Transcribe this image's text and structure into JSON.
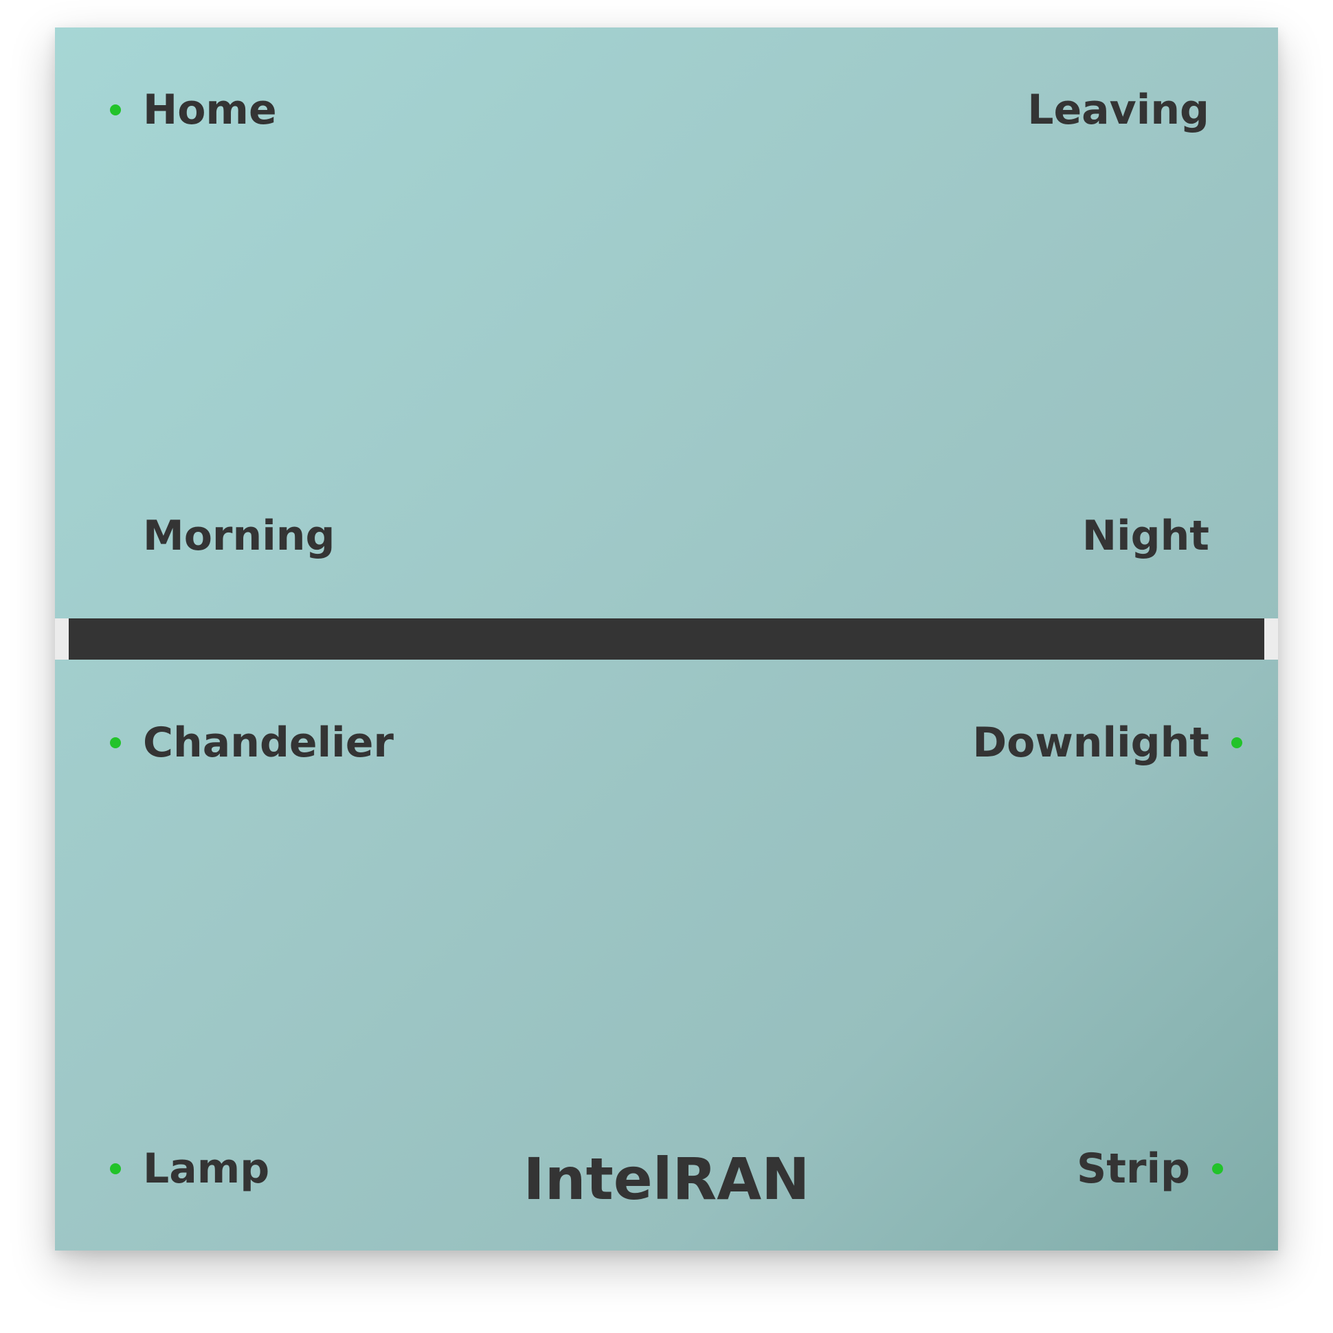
{
  "scenes": {
    "home": {
      "label": "Home",
      "active": true
    },
    "leaving": {
      "label": "Leaving",
      "active": false
    },
    "morning": {
      "label": "Morning",
      "active": false
    },
    "night": {
      "label": "Night",
      "active": false
    }
  },
  "lights": {
    "chandelier": {
      "label": "Chandelier",
      "on": true
    },
    "downlight": {
      "label": "Downlight",
      "on": true
    },
    "lamp": {
      "label": "Lamp",
      "on": true
    },
    "strip": {
      "label": "Strip",
      "on": true
    }
  },
  "brand": {
    "name": "IntelRAN"
  },
  "colors": {
    "indicator_on": "#22c32a",
    "text": "#343434",
    "divider": "#343434"
  }
}
